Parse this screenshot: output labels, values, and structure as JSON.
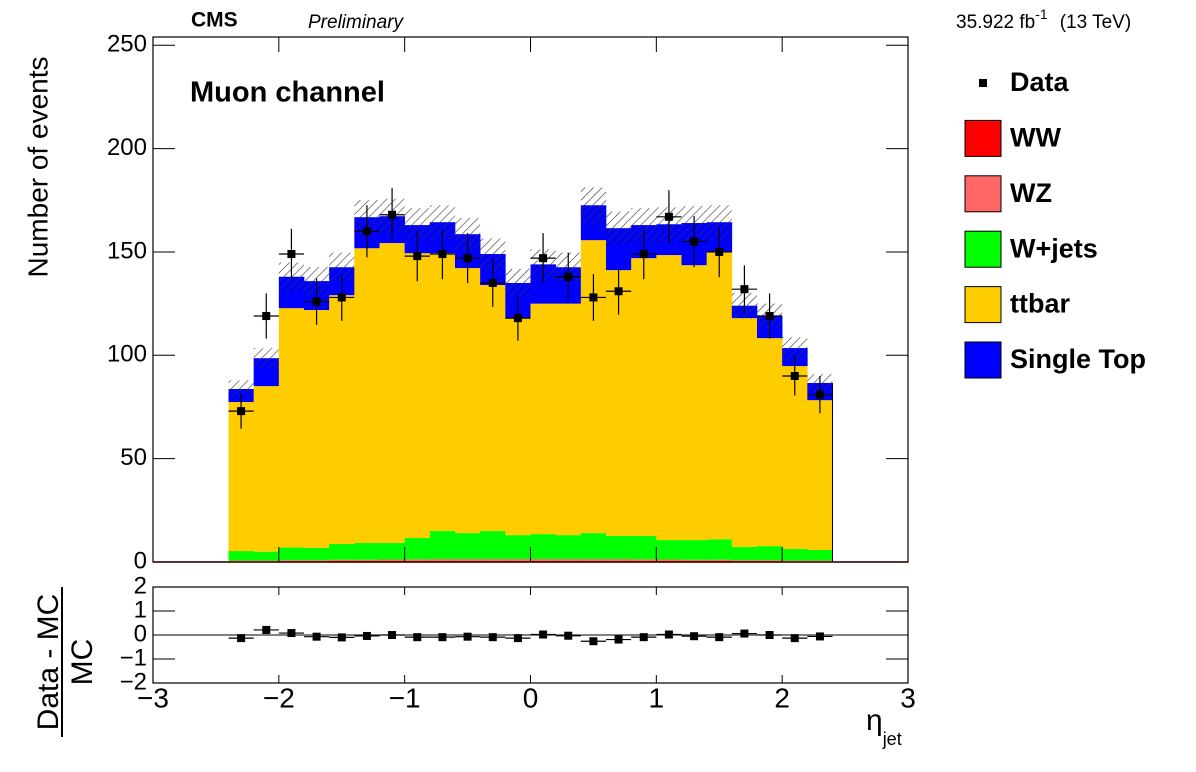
{
  "chart_data": {
    "type": "stacked-histogram",
    "experiment": "CMS",
    "status": "Preliminary",
    "lumi": "35.922 fb",
    "lumi_exp": "-1",
    "energy": "(13 TeV)",
    "annotation": "Muon channel",
    "ylabel": "Number of events",
    "xlabel": "η",
    "xlabel_sub": "jet",
    "bins": [
      -2.4,
      -2.2,
      -2.0,
      -1.8,
      -1.6,
      -1.4,
      -1.2,
      -1.0,
      -0.8,
      -0.6,
      -0.4,
      -0.2,
      0,
      0.2,
      0.4,
      0.6,
      0.8,
      1.0,
      1.2,
      1.4,
      1.6,
      1.8,
      2.0,
      2.2,
      2.4
    ],
    "xlim": [
      -3,
      3
    ],
    "xticks": [
      {
        "value": -3,
        "label": "−3"
      },
      {
        "value": -2,
        "label": "−2"
      },
      {
        "value": -1,
        "label": "−1"
      },
      0,
      1,
      2,
      3
    ],
    "ylim": [
      0,
      254
    ],
    "yticks": [
      0,
      50,
      100,
      150,
      200,
      250
    ],
    "series": [
      {
        "name": "WW",
        "color": "#ff0000",
        "values": [
          0.3,
          0.3,
          0.4,
          0.4,
          0.5,
          0.5,
          0.5,
          0.6,
          0.6,
          0.6,
          0.6,
          0.6,
          0.6,
          0.6,
          0.6,
          0.6,
          0.6,
          0.5,
          0.5,
          0.5,
          0.4,
          0.4,
          0.3,
          0.3
        ]
      },
      {
        "name": "WZ",
        "color": "#ff6666",
        "values": [
          0.4,
          0.4,
          0.5,
          0.5,
          0.6,
          0.6,
          0.7,
          0.7,
          0.8,
          0.8,
          0.8,
          0.8,
          0.8,
          0.8,
          0.8,
          0.8,
          0.7,
          0.7,
          0.6,
          0.6,
          0.5,
          0.5,
          0.4,
          0.4
        ]
      },
      {
        "name": "W+jets",
        "color": "#00ff00",
        "values": [
          4.6,
          4.3,
          6.1,
          5.9,
          7.6,
          8.1,
          8.0,
          10.3,
          13.6,
          12.6,
          13.6,
          11.6,
          12.1,
          11.6,
          12.6,
          11.2,
          11.3,
          9.4,
          9.5,
          9.9,
          6.4,
          6.8,
          5.6,
          5.1
        ]
      },
      {
        "name": "ttbar",
        "color": "#ffcc00",
        "values": [
          72.1,
          80.1,
          115.8,
          115.1,
          120.4,
          142.6,
          145.1,
          137.8,
          134.4,
          128.2,
          119.0,
          105.0,
          111.5,
          112.0,
          141.7,
          128.6,
          134.4,
          137.9,
          133.0,
          139.0,
          110.7,
          100.6,
          88.5,
          72.5
        ]
      },
      {
        "name": "Single Top",
        "color": "#0000ff",
        "values": [
          6.3,
          13.5,
          15.2,
          14.0,
          13.5,
          15.0,
          13.0,
          13.6,
          15.0,
          16.4,
          15.0,
          17.0,
          19.0,
          17.6,
          16.9,
          20.3,
          16.0,
          14.9,
          20.4,
          14.4,
          6.0,
          10.7,
          8.7,
          8.3
        ]
      }
    ],
    "mc_errors": [
      4.2,
      4.9,
      6.9,
      6.8,
      7.1,
      8.3,
      8.4,
      8.2,
      8.2,
      7.9,
      7.5,
      6.8,
      7.2,
      7.1,
      8.6,
      8.1,
      8.2,
      8.2,
      8.2,
      8.2,
      6.2,
      6.0,
      5.2,
      4.3
    ],
    "data": {
      "name": "Data",
      "color": "#000000",
      "values": [
        73,
        119,
        149,
        126,
        128,
        160,
        168,
        148,
        149,
        147,
        135,
        118,
        147,
        138,
        128,
        131,
        149,
        167,
        155,
        150,
        132,
        119,
        90,
        81
      ],
      "errors": [
        8.5,
        10.9,
        12.2,
        11.2,
        11.3,
        12.6,
        13.0,
        12.2,
        12.2,
        12.1,
        11.6,
        10.9,
        12.1,
        11.7,
        11.3,
        11.4,
        12.2,
        12.9,
        12.4,
        12.2,
        11.5,
        10.9,
        9.5,
        9.0
      ]
    },
    "ratio": {
      "ylabel_num": "Data - MC",
      "ylabel_den": "MC",
      "ylim": [
        -2,
        2
      ],
      "yticks": [
        {
          "value": -2,
          "label": "−2"
        },
        {
          "value": -1,
          "label": "−1"
        },
        0,
        1,
        2
      ],
      "values": [
        -0.13,
        0.21,
        0.08,
        -0.07,
        -0.1,
        -0.04,
        0.0,
        -0.09,
        -0.09,
        -0.07,
        -0.09,
        -0.13,
        0.02,
        -0.03,
        -0.26,
        -0.19,
        -0.09,
        0.02,
        -0.05,
        -0.09,
        0.06,
        0.0,
        -0.13,
        -0.06
      ],
      "errors": [
        0.1,
        0.11,
        0.09,
        0.08,
        0.08,
        0.08,
        0.08,
        0.07,
        0.07,
        0.08,
        0.08,
        0.08,
        0.08,
        0.08,
        0.07,
        0.07,
        0.07,
        0.08,
        0.08,
        0.07,
        0.09,
        0.09,
        0.09,
        0.1
      ]
    }
  }
}
